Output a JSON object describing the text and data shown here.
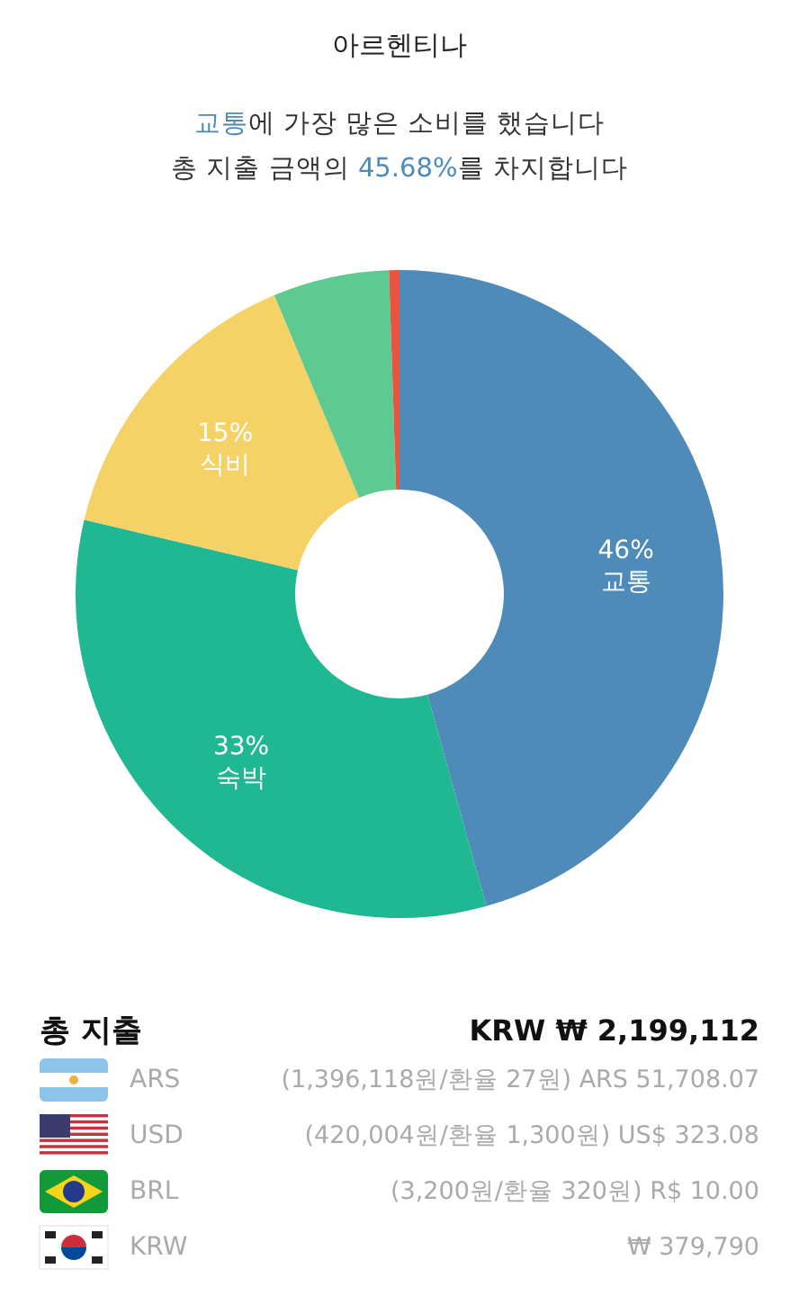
{
  "chart_data": {
    "type": "donut",
    "title": "아르헨티나",
    "subtitle": "교통에 가장 많은 소비를 했습니다\n총 지출 금액의 45.68%를 차지합니다",
    "categories": [
      "교통",
      "숙박",
      "식비",
      null,
      null
    ],
    "values": [
      45.68,
      33,
      15,
      5.8,
      0.52
    ],
    "value_labels": [
      "46%",
      "33%",
      "15%",
      null,
      null
    ],
    "colors": [
      "#4f8bb8",
      "#1fb892",
      "#f5d266",
      "#5ec991",
      "#e8543f"
    ],
    "annotations": [
      "총 지출",
      "KRW ₩  2,199,112",
      "ARS",
      "(1,396,118원/환율 27원) ARS 51,708.07",
      "USD",
      "(420,004원/환율 1,300원) US$ 323.08",
      "BRL",
      "(3,200원/환율 320원) R$ 10.00",
      "KRW",
      "₩ 379,790"
    ]
  }
}
